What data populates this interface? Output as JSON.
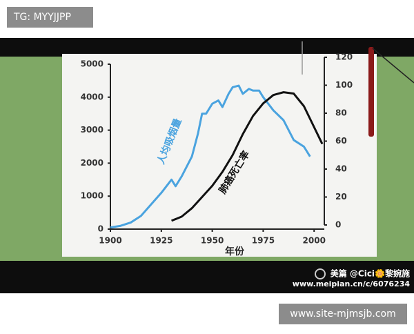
{
  "chart_data": {
    "type": "line",
    "x_label": "年份",
    "xlim": [
      1900,
      2005
    ],
    "xticks": [
      1900,
      1925,
      1950,
      1975,
      2000
    ],
    "ylim": [
      0,
      5000
    ],
    "yticks": [
      0,
      1000,
      2000,
      3000,
      4000,
      5000
    ],
    "y2lim": [
      0,
      120
    ],
    "y2ticks": [
      0,
      20,
      40,
      60,
      80,
      100,
      120
    ],
    "series": [
      {
        "name": "人均吸烟量",
        "color": "#4aa3df",
        "x": [
          1900,
          1905,
          1910,
          1915,
          1920,
          1925,
          1930,
          1932,
          1935,
          1940,
          1943,
          1945,
          1947,
          1950,
          1953,
          1955,
          1958,
          1960,
          1963,
          1965,
          1968,
          1970,
          1973,
          1975,
          1980,
          1985,
          1990,
          1995,
          1998
        ],
        "values": [
          50,
          100,
          200,
          400,
          750,
          1100,
          1500,
          1300,
          1600,
          2200,
          2900,
          3500,
          3500,
          3800,
          3900,
          3700,
          4100,
          4300,
          4350,
          4100,
          4250,
          4200,
          4200,
          4000,
          3600,
          3300,
          2700,
          2500,
          2200
        ]
      },
      {
        "name": "肺癌死亡率",
        "color": "#111111",
        "axis": "y2",
        "x": [
          1930,
          1935,
          1940,
          1945,
          1950,
          1955,
          1960,
          1965,
          1970,
          1975,
          1980,
          1985,
          1990,
          1995,
          2000,
          2004
        ],
        "values": [
          3,
          6,
          12,
          20,
          28,
          38,
          50,
          65,
          78,
          87,
          93,
          95,
          94,
          85,
          70,
          58
        ]
      }
    ]
  },
  "overlay": {
    "tag": "TG: MYYJJPP",
    "watermark": [
      "美篇 @Cici🌼黎婉施",
      "www.meipian.cn/c/6076234"
    ],
    "site": "www.site-mjmsjb.com"
  }
}
